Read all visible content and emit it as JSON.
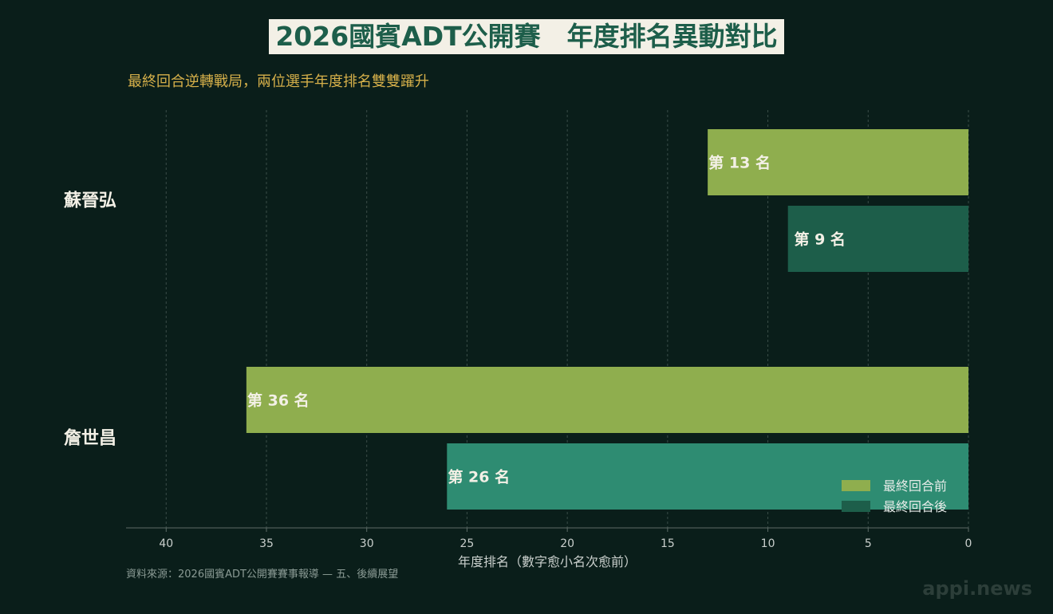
{
  "header": {
    "title": "2026國賓ADT公開賽　年度排名異動對比",
    "subtitle": "最終回合逆轉戰局，兩位選手年度排名雙雙躍升"
  },
  "footer": {
    "source": "資料來源：2026國賓ADT公開賽賽事報導 — 五、後續展望",
    "watermark": "appi.news"
  },
  "chart_data": {
    "type": "bar",
    "orientation": "horizontal",
    "categories": [
      "蘇晉弘",
      "詹世昌"
    ],
    "series": [
      {
        "name": "最終回合前",
        "values": [
          13,
          36
        ],
        "color": "#8fae4e"
      },
      {
        "name": "最終回合後",
        "values": [
          9,
          26
        ],
        "colors": [
          "#1d5e4a",
          "#2e8c72"
        ]
      }
    ],
    "label_prefix": "第",
    "label_suffix": "名",
    "xlabel": "年度排名（數字愈小名次愈前）",
    "xlim": [
      42,
      0
    ],
    "x_reversed": true,
    "xticks": [
      40,
      35,
      30,
      25,
      20,
      15,
      10,
      5,
      0
    ],
    "grid": "vertical-dashed",
    "legend_position": "bottom-right"
  }
}
